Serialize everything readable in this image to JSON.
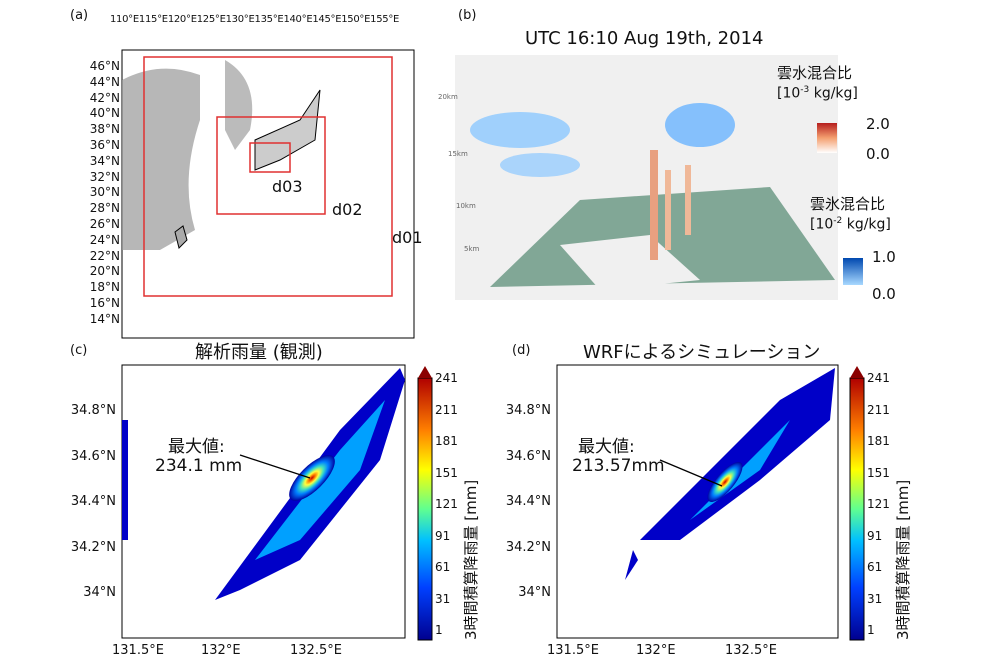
{
  "panel_a": {
    "label": "(a)",
    "lon_ticks": [
      "110°E",
      "115°E",
      "120°E",
      "125°E",
      "130°E",
      "135°E",
      "140°E",
      "145°E",
      "150°E",
      "155°E"
    ],
    "lat_ticks": [
      "46°N",
      "44°N",
      "42°N",
      "40°N",
      "38°N",
      "36°N",
      "34°N",
      "32°N",
      "30°N",
      "28°N",
      "26°N",
      "24°N",
      "22°N",
      "20°N",
      "18°N",
      "16°N",
      "14°N"
    ],
    "domains": [
      "d01",
      "d02",
      "d03"
    ],
    "domain_color": "#e03030"
  },
  "panel_b": {
    "label": "(b)",
    "title": "UTC 16:10 Aug 19th, 2014",
    "height_ticks": [
      "20km",
      "15km",
      "10km",
      "5km"
    ],
    "legend_cloud_water": {
      "title": "雲水混合比",
      "unit_pre": "[10",
      "unit_exp": "-3",
      "unit_post": " kg/kg]",
      "max": "2.0",
      "min": "0.0"
    },
    "legend_cloud_ice": {
      "title": "雲氷混合比",
      "unit_pre": "[10",
      "unit_exp": "-2",
      "unit_post": " kg/kg]",
      "max": "1.0",
      "min": "0.0"
    }
  },
  "panel_c": {
    "label": "(c)",
    "title": "解析雨量 (観測)",
    "annotation_label": "最大値:",
    "annotation_value": "234.1 mm"
  },
  "panel_d": {
    "label": "(d)",
    "title": "WRFによるシミュレーション",
    "annotation_label": "最大値:",
    "annotation_value": "213.57mm"
  },
  "rain_maps": {
    "lat_ticks": [
      "34.8°N",
      "34.6°N",
      "34.4°N",
      "34.2°N",
      "34°N"
    ],
    "lon_ticks": [
      "131.5°E",
      "132°E",
      "132.5°E"
    ],
    "colorbar_ticks": [
      "241",
      "211",
      "181",
      "151",
      "121",
      "91",
      "61",
      "31",
      "1"
    ],
    "colorbar_label": "3時間積算降雨量 [mm]"
  }
}
